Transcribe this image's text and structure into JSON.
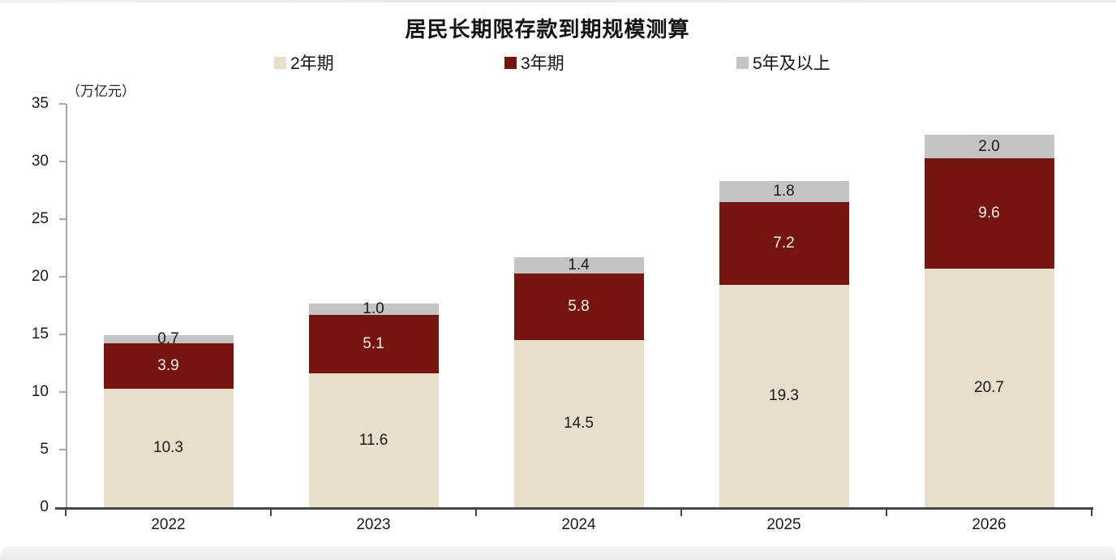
{
  "chart_data": {
    "type": "bar",
    "stacked": true,
    "title": "居民长期限存款到期规模测算",
    "unit_label": "（万亿元）",
    "categories": [
      "2022",
      "2023",
      "2024",
      "2025",
      "2026"
    ],
    "series": [
      {
        "name": "2年期",
        "color": "#e7dfcc",
        "label_color": "#1a1a1a",
        "values": [
          10.3,
          11.6,
          14.5,
          19.3,
          20.7
        ]
      },
      {
        "name": "3年期",
        "color": "#74150f",
        "label_color": "#f4ecea",
        "values": [
          3.9,
          5.1,
          5.8,
          7.2,
          9.6
        ]
      },
      {
        "name": "5年及以上",
        "color": "#c4c4c4",
        "label_color": "#1a1a1a",
        "values": [
          0.7,
          1.0,
          1.4,
          1.8,
          2.0
        ]
      }
    ],
    "ylim": [
      0,
      35
    ],
    "ytick_step": 5,
    "yticks": [
      0,
      5,
      10,
      15,
      20,
      25,
      30,
      35
    ],
    "legend_position": "top",
    "grid": false,
    "value_labels": "inside",
    "axis_color": "#474747",
    "y_axis_color": "#a8a8a8"
  }
}
